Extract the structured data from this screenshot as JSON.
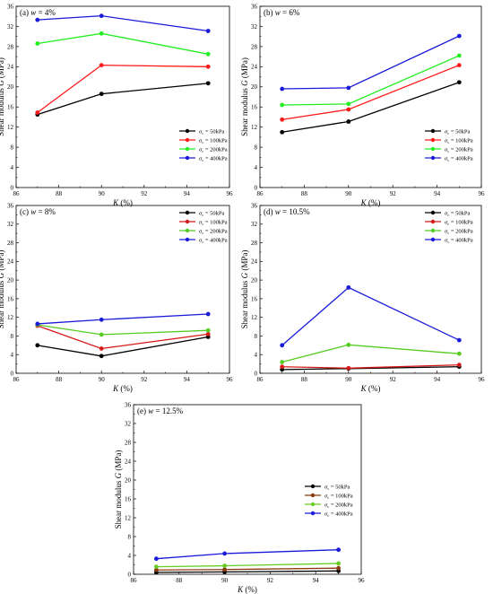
{
  "chart_data": [
    {
      "type": "line",
      "title": "(a) w = 4%",
      "title_parts": {
        "prefix": "(a) ",
        "var": "w",
        "rest": " = 4%"
      },
      "xlabel": "K (%)",
      "ylabel": "Shear modulus G (MPa)",
      "xlim": [
        86,
        96
      ],
      "ylim": [
        0,
        36
      ],
      "xticks": [
        "86",
        "88",
        "90",
        "92",
        "94",
        "96"
      ],
      "yticks": [
        "0",
        "4",
        "8",
        "12",
        "16",
        "20",
        "24",
        "28",
        "32",
        "36"
      ],
      "x": [
        87,
        90,
        95
      ],
      "legend_position": "bottom-right",
      "series": [
        {
          "name": "σc = 50kPa",
          "legend": {
            "sym": "σ",
            "sub": "c",
            "rest": " = 50kPa"
          },
          "color": "#000000",
          "values": [
            14.5,
            18.6,
            20.7
          ]
        },
        {
          "name": "σc = 100kPa",
          "legend": {
            "sym": "σ",
            "sub": "c",
            "rest": " = 100kPa"
          },
          "color": "#ff1a1a",
          "values": [
            14.9,
            24.3,
            24.0
          ]
        },
        {
          "name": "σc = 200kPa",
          "legend": {
            "sym": "σ",
            "sub": "c",
            "rest": " = 200kPa"
          },
          "color": "#22ee22",
          "values": [
            28.6,
            30.6,
            26.5
          ]
        },
        {
          "name": "σc = 400kPa",
          "legend": {
            "sym": "σ",
            "sub": "c",
            "rest": " = 400kPa"
          },
          "color": "#1a1ad9",
          "values": [
            33.3,
            34.1,
            31.1
          ]
        }
      ]
    },
    {
      "type": "line",
      "title": "(b) w = 6%",
      "title_parts": {
        "prefix": "(b) ",
        "var": "w",
        "rest": " = 6%"
      },
      "xlabel": "K (%)",
      "ylabel": "Shear modulus G (MPa)",
      "xlim": [
        86,
        96
      ],
      "ylim": [
        0,
        36
      ],
      "xticks": [
        "86",
        "88",
        "90",
        "92",
        "94",
        "96"
      ],
      "yticks": [
        "0",
        "4",
        "8",
        "12",
        "16",
        "20",
        "24",
        "28",
        "32",
        "36"
      ],
      "x": [
        87,
        90,
        95
      ],
      "legend_position": "bottom-right",
      "series": [
        {
          "name": "σc = 50kPa",
          "legend": {
            "sym": "σ",
            "sub": "c",
            "rest": " = 50kPa"
          },
          "color": "#000000",
          "values": [
            11.0,
            13.1,
            20.9
          ]
        },
        {
          "name": "σc = 100kPa",
          "legend": {
            "sym": "σ",
            "sub": "c",
            "rest": " = 100kPa"
          },
          "color": "#ff1a1a",
          "values": [
            13.5,
            15.5,
            24.3
          ]
        },
        {
          "name": "σc = 200kPa",
          "legend": {
            "sym": "σ",
            "sub": "c",
            "rest": " = 200kPa"
          },
          "color": "#22ee22",
          "values": [
            16.4,
            16.6,
            26.2
          ]
        },
        {
          "name": "σc = 400kPa",
          "legend": {
            "sym": "σ",
            "sub": "c",
            "rest": " = 400kPa"
          },
          "color": "#1a1ad9",
          "values": [
            19.6,
            19.8,
            30.1
          ]
        }
      ]
    },
    {
      "type": "line",
      "title": "(c) w = 8%",
      "title_parts": {
        "prefix": "(c) ",
        "var": "w",
        "rest": " = 8%"
      },
      "xlabel": "K (%)",
      "ylabel": "Shear modulus G (MPa)",
      "xlim": [
        86,
        96
      ],
      "ylim": [
        0,
        36
      ],
      "xticks": [
        "86",
        "88",
        "90",
        "92",
        "94",
        "96"
      ],
      "yticks": [
        "0",
        "4",
        "8",
        "12",
        "16",
        "20",
        "24",
        "28",
        "32",
        "36"
      ],
      "x": [
        87,
        90,
        95
      ],
      "legend_position": "top-right",
      "series": [
        {
          "name": "σc = 50kPa",
          "legend": {
            "sym": "σ",
            "sub": "c",
            "rest": " = 50kPa"
          },
          "color": "#000000",
          "values": [
            6.0,
            3.7,
            7.8
          ]
        },
        {
          "name": "σc = 100kPa",
          "legend": {
            "sym": "σ",
            "sub": "c",
            "rest": " = 100kPa"
          },
          "color": "#d61a1a",
          "values": [
            10.2,
            5.3,
            8.4
          ]
        },
        {
          "name": "σc = 200kPa",
          "legend": {
            "sym": "σ",
            "sub": "c",
            "rest": " = 200kPa"
          },
          "color": "#55cc22",
          "values": [
            10.4,
            8.3,
            9.2
          ]
        },
        {
          "name": "σc = 400kPa",
          "legend": {
            "sym": "σ",
            "sub": "c",
            "rest": " = 400kPa"
          },
          "color": "#1a1ad9",
          "values": [
            10.6,
            11.5,
            12.7
          ]
        }
      ]
    },
    {
      "type": "line",
      "title": "(d) w = 10.5%",
      "title_parts": {
        "prefix": "(d) ",
        "var": "w",
        "rest": " = 10.5%"
      },
      "xlabel": "K (%)",
      "ylabel": "Shear modulus G (MPa)",
      "xlim": [
        86,
        96
      ],
      "ylim": [
        0,
        36
      ],
      "xticks": [
        "86",
        "88",
        "90",
        "92",
        "94",
        "96"
      ],
      "yticks": [
        "0",
        "4",
        "8",
        "12",
        "16",
        "20",
        "24",
        "28",
        "32",
        "36"
      ],
      "x": [
        87,
        90,
        95
      ],
      "legend_position": "top-right",
      "series": [
        {
          "name": "σc = 50kPa",
          "legend": {
            "sym": "σ",
            "sub": "c",
            "rest": " = 50kPa"
          },
          "color": "#000000",
          "values": [
            0.8,
            1.0,
            1.4
          ]
        },
        {
          "name": "σc = 100kPa",
          "legend": {
            "sym": "σ",
            "sub": "c",
            "rest": " = 100kPa"
          },
          "color": "#d61a1a",
          "values": [
            1.4,
            1.1,
            1.8
          ]
        },
        {
          "name": "σc = 200kPa",
          "legend": {
            "sym": "σ",
            "sub": "c",
            "rest": " = 200kPa"
          },
          "color": "#55cc22",
          "values": [
            2.4,
            6.1,
            4.2
          ]
        },
        {
          "name": "σc = 400kPa",
          "legend": {
            "sym": "σ",
            "sub": "c",
            "rest": " = 400kPa"
          },
          "color": "#1a1ad9",
          "values": [
            6.0,
            18.4,
            7.1
          ]
        }
      ]
    },
    {
      "type": "line",
      "title": "(e) w = 12.5%",
      "title_parts": {
        "prefix": "(e) ",
        "var": "w",
        "rest": " = 12.5%"
      },
      "xlabel": "K (%)",
      "ylabel": "Shear modulus G (MPa)",
      "xlim": [
        86,
        96
      ],
      "ylim": [
        0,
        36
      ],
      "xticks": [
        "86",
        "88",
        "90",
        "92",
        "94",
        "96"
      ],
      "yticks": [
        "0",
        "4",
        "8",
        "12",
        "16",
        "20",
        "24",
        "28",
        "32",
        "36"
      ],
      "x": [
        87,
        90,
        95
      ],
      "legend_position": "right",
      "series": [
        {
          "name": "σc = 50kPa",
          "legend": {
            "sym": "σ",
            "sub": "c",
            "rest": " = 50kPa"
          },
          "color": "#000000",
          "values": [
            0.4,
            0.5,
            0.7
          ]
        },
        {
          "name": "σc = 100kPa",
          "legend": {
            "sym": "σ",
            "sub": "c",
            "rest": " = 100kPa"
          },
          "color": "#8b3a0f",
          "values": [
            0.9,
            1.0,
            1.3
          ]
        },
        {
          "name": "σc = 200kPa",
          "legend": {
            "sym": "σ",
            "sub": "c",
            "rest": " = 200kPa"
          },
          "color": "#66cc22",
          "values": [
            1.6,
            1.8,
            2.3
          ]
        },
        {
          "name": "σc = 400kPa",
          "legend": {
            "sym": "σ",
            "sub": "c",
            "rest": " = 400kPa"
          },
          "color": "#1a1ad9",
          "values": [
            3.3,
            4.4,
            5.2
          ]
        }
      ]
    }
  ]
}
